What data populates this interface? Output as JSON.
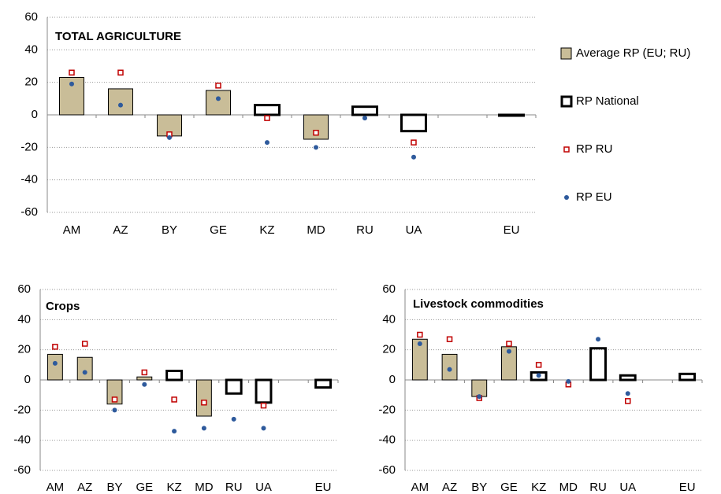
{
  "chart_data": [
    {
      "type": "bar",
      "title": "TOTAL AGRICULTURE",
      "categories": [
        "AM",
        "AZ",
        "BY",
        "GE",
        "KZ",
        "MD",
        "RU",
        "UA",
        null,
        "EU"
      ],
      "ylim": [
        -60,
        60
      ],
      "yticks": [
        -60,
        -40,
        -20,
        0,
        20,
        40,
        60
      ],
      "grid": true,
      "legend": "right",
      "series": [
        {
          "name": "Average RP (EU; RU)",
          "style": "bar",
          "color": "#c9bd98",
          "values": [
            23,
            16,
            -13,
            15,
            null,
            -15,
            null,
            null,
            null,
            null
          ]
        },
        {
          "name": "RP National",
          "style": "outline-bar",
          "color": "#000000",
          "values": [
            null,
            null,
            null,
            null,
            6,
            null,
            5,
            -10,
            null,
            0
          ]
        },
        {
          "name": "RP RU",
          "style": "square",
          "color": "#c00000",
          "values": [
            26,
            26,
            -12,
            18,
            -2,
            -11,
            null,
            -17,
            null,
            null
          ]
        },
        {
          "name": "RP EU",
          "style": "dot",
          "color": "#2e5a9c",
          "values": [
            19,
            6,
            -14,
            10,
            -17,
            -20,
            -2,
            -26,
            null,
            null
          ]
        }
      ]
    },
    {
      "type": "bar",
      "title": "Crops",
      "categories": [
        "AM",
        "AZ",
        "BY",
        "GE",
        "KZ",
        "MD",
        "RU",
        "UA",
        null,
        "EU"
      ],
      "ylim": [
        -60,
        60
      ],
      "yticks": [
        -60,
        -40,
        -20,
        0,
        20,
        40,
        60
      ],
      "grid": true,
      "series": [
        {
          "style": "bar",
          "color": "#c9bd98",
          "values": [
            17,
            15,
            -16,
            2,
            null,
            -24,
            null,
            null,
            null,
            null
          ]
        },
        {
          "style": "outline-bar",
          "color": "#000000",
          "values": [
            null,
            null,
            null,
            null,
            6,
            null,
            -9,
            -15,
            null,
            -5
          ]
        },
        {
          "style": "square",
          "color": "#c00000",
          "values": [
            22,
            24,
            -13,
            5,
            -13,
            -15,
            null,
            -17,
            null,
            null
          ]
        },
        {
          "style": "dot",
          "color": "#2e5a9c",
          "values": [
            11,
            5,
            -20,
            -3,
            -34,
            -32,
            -26,
            -32,
            null,
            null
          ]
        }
      ]
    },
    {
      "type": "bar",
      "title": "Livestock commodities",
      "categories": [
        "AM",
        "AZ",
        "BY",
        "GE",
        "KZ",
        "MD",
        "RU",
        "UA",
        null,
        "EU"
      ],
      "ylim": [
        -60,
        60
      ],
      "yticks": [
        -60,
        -40,
        -20,
        0,
        20,
        40,
        60
      ],
      "grid": true,
      "series": [
        {
          "style": "bar",
          "color": "#c9bd98",
          "values": [
            27,
            17,
            -11,
            22,
            null,
            null,
            null,
            null,
            null,
            null
          ]
        },
        {
          "style": "outline-bar",
          "color": "#000000",
          "values": [
            null,
            null,
            null,
            null,
            5,
            null,
            21,
            3,
            null,
            4
          ]
        },
        {
          "style": "square",
          "color": "#c00000",
          "values": [
            30,
            27,
            -12,
            24,
            10,
            -3,
            null,
            -14,
            null,
            null
          ]
        },
        {
          "style": "dot",
          "color": "#2e5a9c",
          "values": [
            24,
            7,
            -11,
            19,
            3,
            -1,
            27,
            -9,
            null,
            null
          ]
        }
      ]
    }
  ]
}
